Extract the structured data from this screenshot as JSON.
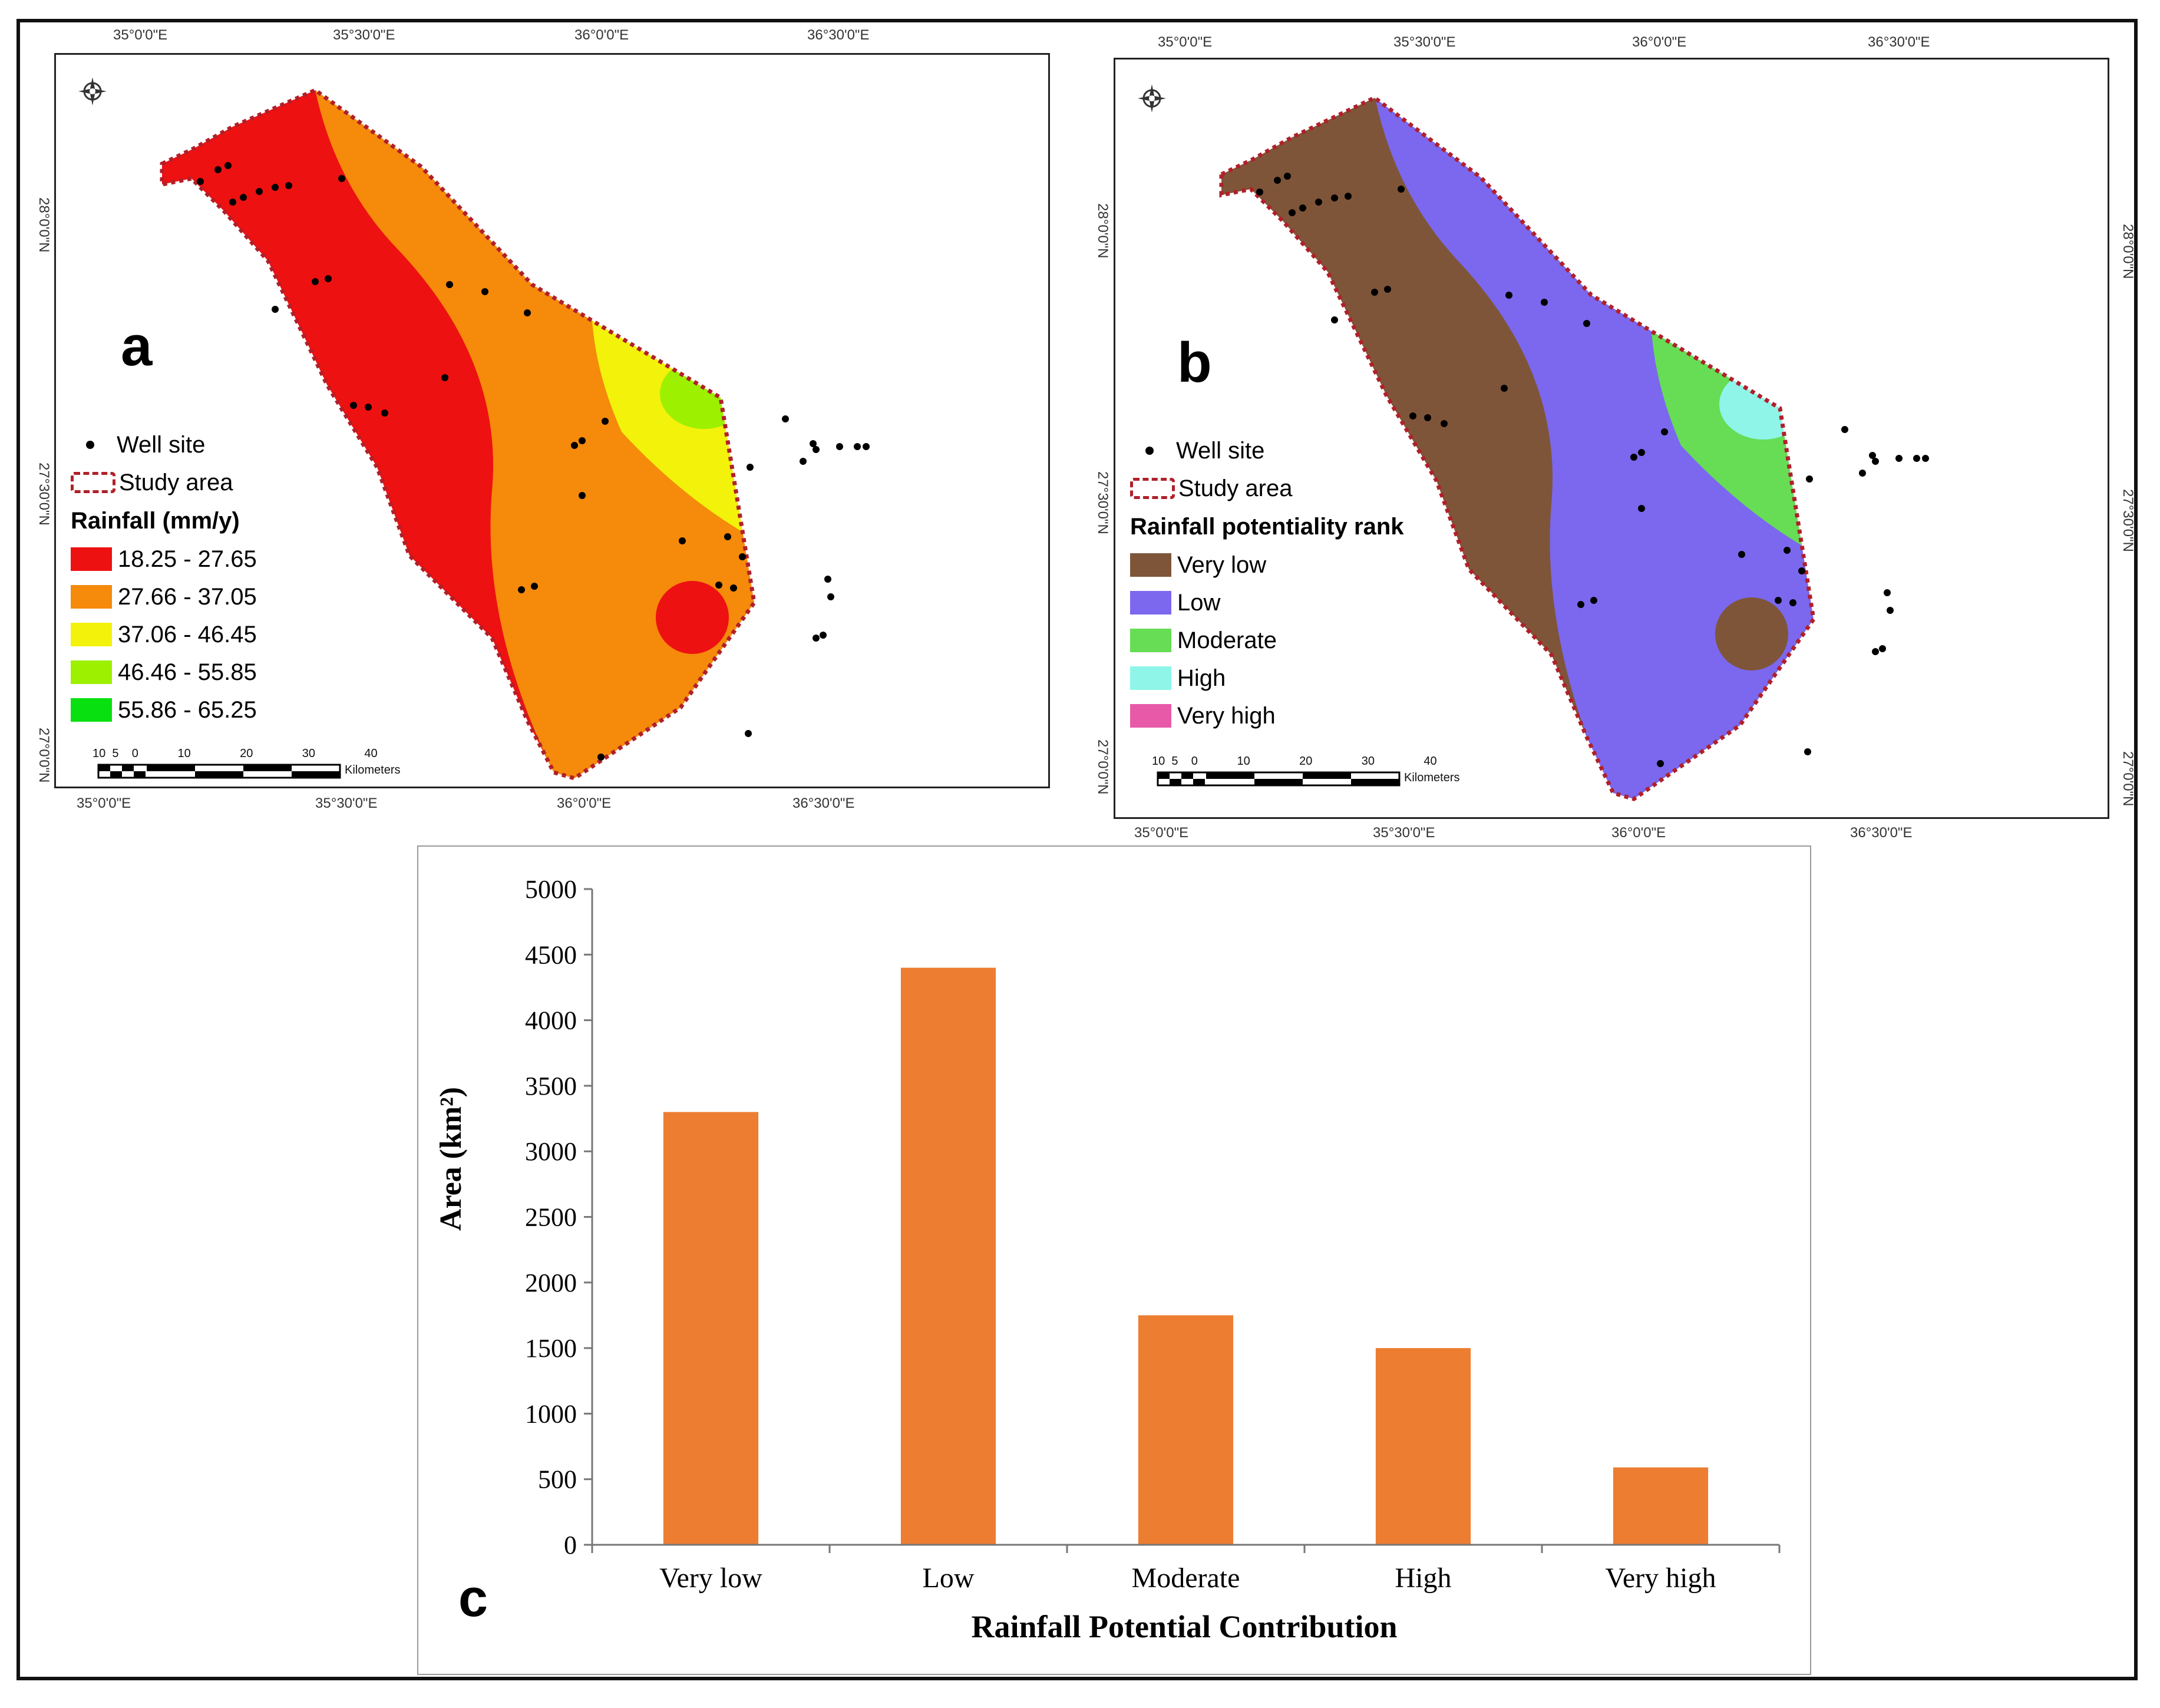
{
  "figure": {
    "panels": [
      "a",
      "b",
      "c"
    ]
  },
  "map_a": {
    "label": "a",
    "lon_ticks_top": [
      "35°0'0\"E",
      "35°30'0\"E",
      "36°0'0\"E",
      "36°30'0\"E"
    ],
    "lon_ticks_bottom": [
      "35°0'0\"E",
      "35°30'0\"E",
      "36°0'0\"E",
      "36°30'0\"E"
    ],
    "lat_ticks_left": [
      "28°0'0\"N",
      "27°30'0\"N",
      "27°0'0\"N"
    ],
    "legend": {
      "well_site": "Well site",
      "study_area": "Study area",
      "title": "Rainfall (mm/y)",
      "classes": [
        {
          "label": "18.25 - 27.65",
          "color": "#ee1111"
        },
        {
          "label": "27.66 - 37.05",
          "color": "#f58a0b"
        },
        {
          "label": "37.06 - 46.45",
          "color": "#f2f20a"
        },
        {
          "label": "46.46 - 55.85",
          "color": "#9cf000"
        },
        {
          "label": "55.86 - 65.25",
          "color": "#08e010"
        }
      ]
    },
    "scale": {
      "ticks": [
        "10",
        "5",
        "0",
        "10",
        "20",
        "30",
        "40"
      ],
      "unit": "Kilometers"
    }
  },
  "map_b": {
    "label": "b",
    "lon_ticks_top": [
      "35°0'0\"E",
      "35°30'0\"E",
      "36°0'0\"E",
      "36°30'0\"E"
    ],
    "lon_ticks_bottom": [
      "35°0'0\"E",
      "35°30'0\"E",
      "36°0'0\"E",
      "36°30'0\"E"
    ],
    "lat_ticks_left": [
      "28°0'0\"N",
      "27°30'0\"N",
      "27°0'0\"N"
    ],
    "lat_ticks_right": [
      "28°0'0\"N",
      "27°30'0\"N",
      "27°0'0\"N"
    ],
    "legend": {
      "well_site": "Well site",
      "study_area": "Study area",
      "title": "Rainfall potentiality rank",
      "classes": [
        {
          "label": "Very low",
          "color": "#7f5539"
        },
        {
          "label": "Low",
          "color": "#7b68ee"
        },
        {
          "label": "Moderate",
          "color": "#66dd55"
        },
        {
          "label": "High",
          "color": "#8ff5e8"
        },
        {
          "label": "Very high",
          "color": "#e85aa8"
        }
      ]
    },
    "scale": {
      "ticks": [
        "10",
        "5",
        "0",
        "10",
        "20",
        "30",
        "40"
      ],
      "unit": "Kilometers"
    }
  },
  "chart_data": {
    "type": "bar",
    "label": "c",
    "categories": [
      "Very low",
      "Low",
      "Moderate",
      "High",
      "Very high"
    ],
    "values": [
      3300,
      4400,
      1750,
      1500,
      590
    ],
    "xlabel": "Rainfall Potential  Contribution",
    "ylabel": "Area (km²)",
    "ylim": [
      0,
      5000
    ],
    "yticks": [
      "0",
      "500",
      "1000",
      "1500",
      "2000",
      "2500",
      "3000",
      "3500",
      "4000",
      "4500",
      "5000"
    ],
    "bar_color": "#ed7d31",
    "grid": false
  }
}
